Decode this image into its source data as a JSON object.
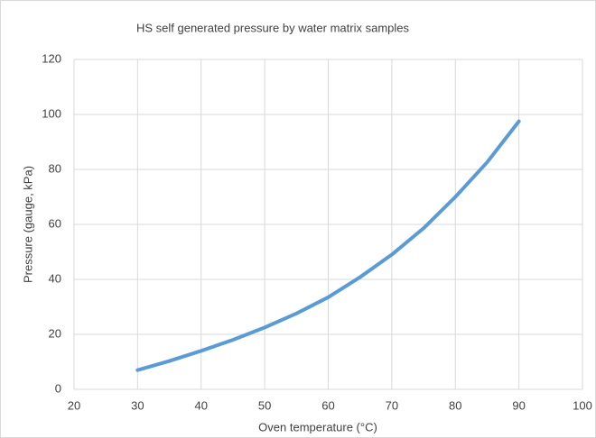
{
  "chart_data": {
    "type": "line",
    "title": "HS self generated pressure by water matrix samples",
    "x_label": "Oven temperature (°C)",
    "y_label": "Pressure (gauge, kPa)",
    "series": [
      {
        "name": "Pressure",
        "color": "#5b9bd5",
        "x": [
          30,
          35,
          40,
          45,
          50,
          55,
          60,
          65,
          70,
          75,
          80,
          85,
          90
        ],
        "values": [
          7,
          10.3,
          14,
          18,
          22.5,
          27.6,
          33.5,
          40.8,
          49,
          58.6,
          70,
          82.6,
          97.5
        ]
      }
    ],
    "xlim": [
      20,
      100
    ],
    "xticks": [
      20,
      30,
      40,
      50,
      60,
      70,
      80,
      90,
      100
    ],
    "ylim": [
      0,
      120
    ],
    "yticks": [
      0,
      20,
      40,
      60,
      80,
      100,
      120
    ],
    "grid": true
  }
}
